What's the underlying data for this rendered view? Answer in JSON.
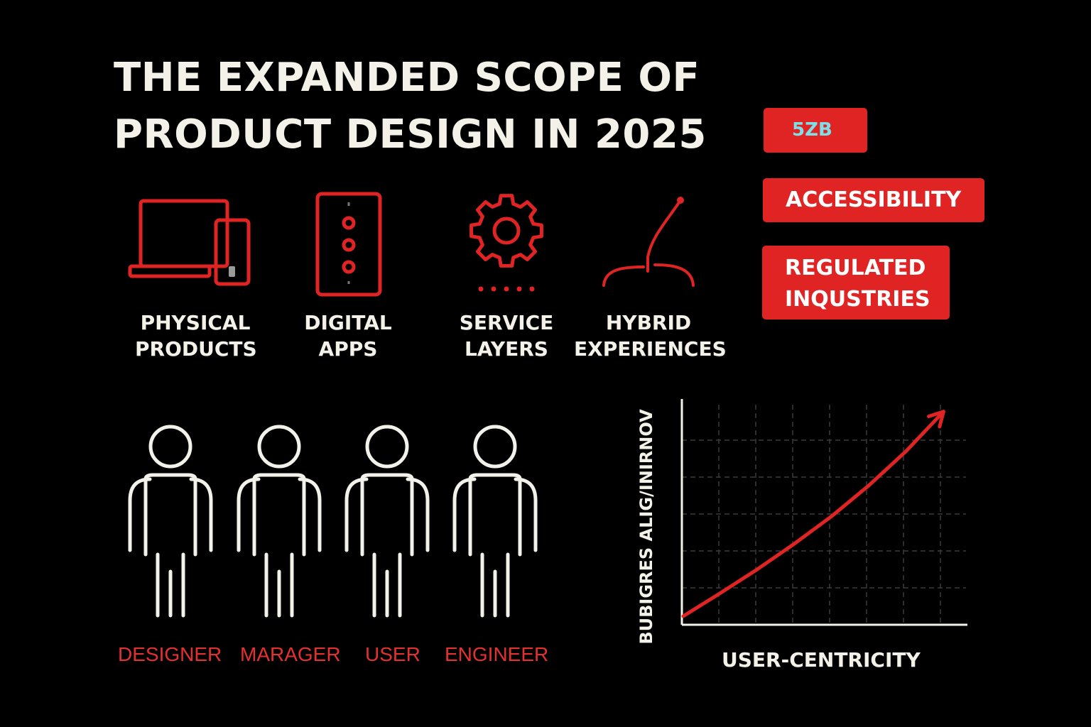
{
  "title": {
    "line1": "THE EXPANDED SCOPE OF",
    "line2": "PRODUCT DESIGN IN 2025"
  },
  "badges": {
    "stat": "5ZB",
    "accessibility": "ACCESSIBILITY",
    "regulated_line1": "REGULATED",
    "regulated_line2": "INQUSTRIES"
  },
  "categories": [
    {
      "line1": "PHYSICAL",
      "line2": "PRODUCTS",
      "icon": "devices-icon"
    },
    {
      "line1": "DIGITAL",
      "line2": "APPS",
      "icon": "smartphone-icon"
    },
    {
      "line1": "SERVICE",
      "line2": "LAYERS",
      "icon": "gear-icon"
    },
    {
      "line1": "HYBRID",
      "line2": "EXPERIENCES",
      "icon": "joystick-icon"
    }
  ],
  "roles": [
    "DESIGNER",
    "MARAGER",
    "USER",
    "ENGINEER"
  ],
  "chart_data": {
    "type": "line",
    "title": "",
    "xlabel": "USER-CENTRICITY",
    "ylabel": "BUBIGRES ALIG/INIRNOV",
    "grid": true,
    "x": [
      0,
      1,
      2,
      3,
      4,
      5,
      6,
      7
    ],
    "values": [
      0.25,
      0.9,
      1.6,
      2.35,
      3.15,
      4.05,
      5.05,
      6.2
    ],
    "xlim": [
      0,
      7.6
    ],
    "ylim": [
      0,
      6.4
    ],
    "arrow_end": true
  },
  "colors": {
    "accent_red": "#e02424",
    "text_light": "#f4f2e8",
    "stat_text": "#7de0e6",
    "background": "#000000"
  }
}
